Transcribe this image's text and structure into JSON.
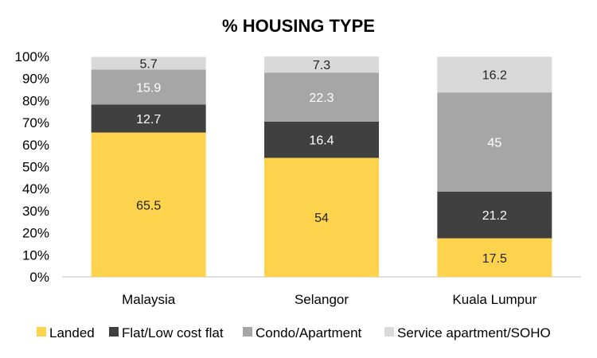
{
  "chart_data": {
    "type": "bar",
    "stacked": true,
    "percent": true,
    "title": "% HOUSING TYPE",
    "categories": [
      "Malaysia",
      "Selangor",
      "Kuala Lumpur"
    ],
    "series": [
      {
        "name": "Landed",
        "values": [
          65.5,
          54,
          17.5
        ],
        "labels": [
          "65.5",
          "54",
          "17.5"
        ],
        "color": "#FDD34E",
        "label_color": "#222222"
      },
      {
        "name": "Flat/Low cost flat",
        "values": [
          12.7,
          16.4,
          21.2
        ],
        "labels": [
          "12.7",
          "16.4",
          "21.2"
        ],
        "color": "#404040",
        "label_color": "#ffffff"
      },
      {
        "name": "Condo/Apartment",
        "values": [
          15.9,
          22.3,
          45
        ],
        "labels": [
          "15.9",
          "22.3",
          "45"
        ],
        "color": "#A6A6A6",
        "label_color": "#ffffff"
      },
      {
        "name": "Service apartment/SOHO",
        "values": [
          5.7,
          7.3,
          16.2
        ],
        "labels": [
          "5.7",
          "7.3",
          "16.2"
        ],
        "color": "#D9D9D9",
        "label_color": "#222222"
      }
    ],
    "y_ticks": [
      "0%",
      "10%",
      "20%",
      "30%",
      "40%",
      "50%",
      "60%",
      "70%",
      "80%",
      "90%",
      "100%"
    ],
    "ylim": [
      0,
      100
    ],
    "grid": false,
    "legend_position": "bottom"
  }
}
